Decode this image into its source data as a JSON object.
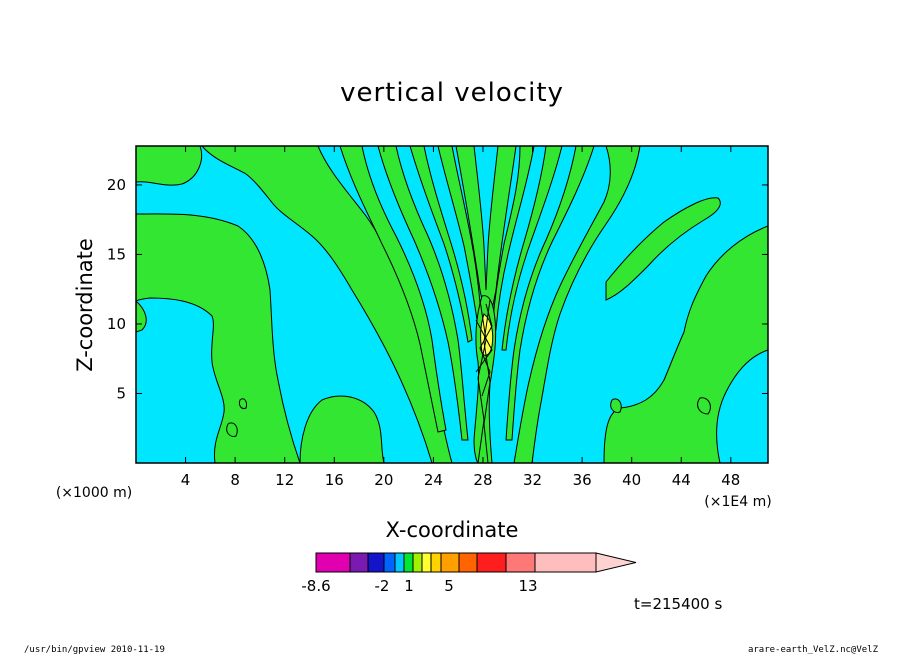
{
  "chart_data": {
    "type": "heatmap",
    "title": "vertical velocity",
    "xlabel": "X-coordinate",
    "ylabel": "Z-coordinate",
    "x_unit_left": "(×1000 m)",
    "x_unit_right": "(×1E4 m)",
    "xlim": [
      0,
      51
    ],
    "ylim": [
      0,
      22.8
    ],
    "x_ticks": [
      4,
      8,
      12,
      16,
      20,
      24,
      28,
      32,
      36,
      40,
      44,
      48
    ],
    "y_ticks": [
      5,
      10,
      15,
      20
    ],
    "time_label": "t=215400 s",
    "colorbar": {
      "colors": [
        "#e000b0",
        "#7a1ab0",
        "#1414c8",
        "#0064ff",
        "#00c8ff",
        "#00e632",
        "#a0f000",
        "#ffff32",
        "#ffd200",
        "#ffa000",
        "#ff6400",
        "#ff1e1e",
        "#ff7878",
        "#ffbebe",
        "#ffd2d2"
      ],
      "tick_labels": [
        "-8.6",
        "-2",
        "1",
        "5",
        "13"
      ],
      "tick_values": [
        -8.6,
        -2,
        1,
        5,
        13
      ]
    },
    "colors": {
      "negative_background": "#00e6ff",
      "positive_region": "#32e632",
      "contour_line": "#000000",
      "core_max": "#ffff50"
    }
  },
  "footer": {
    "left": "/usr/bin/gpview  2010-11-19",
    "right": "arare-earth_VelZ.nc@VelZ"
  }
}
